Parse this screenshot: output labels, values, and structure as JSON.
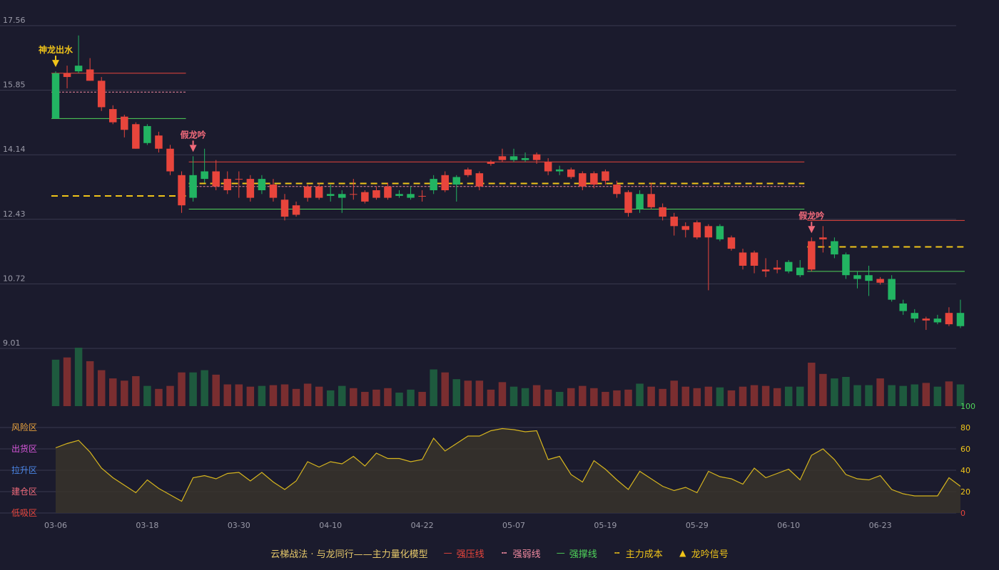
{
  "colors": {
    "bg": "#1b1b2d",
    "grid": "#3a3a4e",
    "up": "#e8453c",
    "down": "#22b462",
    "vol_up": "#7a2e30",
    "vol_down": "#1e5a3e",
    "pressure": "#e8453c",
    "weak": "#f08aa0",
    "support": "#4fd45a",
    "cost": "#f0c419",
    "osc_line": "#d6b51e",
    "osc_fill": "#3a352a",
    "axis_text": "#9a9aa8"
  },
  "chart_data": {
    "type": "candlestick",
    "y_ticks": [
      "17.56",
      "15.85",
      "14.14",
      "12.43",
      "10.72",
      "9.01"
    ],
    "ylim": [
      9.01,
      17.56
    ],
    "x_tick_labels": [
      {
        "i": 0,
        "label": "03-06"
      },
      {
        "i": 8,
        "label": "03-18"
      },
      {
        "i": 16,
        "label": "03-30"
      },
      {
        "i": 24,
        "label": "04-10"
      },
      {
        "i": 32,
        "label": "04-22"
      },
      {
        "i": 40,
        "label": "05-07"
      },
      {
        "i": 48,
        "label": "05-19"
      },
      {
        "i": 56,
        "label": "05-29"
      },
      {
        "i": 64,
        "label": "06-10"
      },
      {
        "i": 72,
        "label": "06-23"
      }
    ],
    "candles": [
      [
        16.3,
        15.1,
        16.35,
        15.1
      ],
      [
        16.2,
        16.3,
        16.5,
        15.9
      ],
      [
        16.5,
        16.35,
        17.3,
        16.3
      ],
      [
        16.1,
        16.4,
        16.7,
        16.1
      ],
      [
        15.4,
        16.1,
        16.2,
        15.3
      ],
      [
        15.0,
        15.35,
        15.45,
        14.95
      ],
      [
        14.8,
        15.15,
        15.2,
        14.6
      ],
      [
        14.3,
        14.95,
        15.0,
        14.3
      ],
      [
        14.9,
        14.45,
        14.95,
        14.4
      ],
      [
        14.3,
        14.65,
        14.75,
        14.2
      ],
      [
        13.7,
        14.3,
        14.4,
        13.6
      ],
      [
        12.8,
        13.6,
        13.7,
        12.6
      ],
      [
        13.6,
        13.0,
        14.1,
        12.9
      ],
      [
        13.7,
        13.5,
        14.3,
        13.4
      ],
      [
        13.3,
        13.7,
        14.0,
        13.2
      ],
      [
        13.2,
        13.5,
        13.7,
        13.1
      ],
      [
        13.5,
        13.5,
        13.7,
        13.0
      ],
      [
        13.0,
        13.5,
        13.6,
        12.9
      ],
      [
        13.5,
        13.2,
        13.6,
        13.1
      ],
      [
        13.0,
        13.35,
        13.5,
        12.9
      ],
      [
        12.5,
        12.95,
        13.1,
        12.4
      ],
      [
        12.55,
        12.8,
        12.9,
        12.5
      ],
      [
        13.0,
        13.3,
        13.35,
        12.9
      ],
      [
        13.0,
        13.3,
        13.4,
        12.95
      ],
      [
        13.1,
        13.05,
        13.35,
        12.9
      ],
      [
        13.1,
        13.0,
        13.2,
        12.6
      ],
      [
        13.1,
        13.1,
        13.5,
        12.95
      ],
      [
        12.9,
        13.15,
        13.2,
        12.85
      ],
      [
        13.0,
        13.2,
        13.3,
        12.95
      ],
      [
        13.0,
        13.3,
        13.4,
        12.95
      ],
      [
        13.1,
        13.05,
        13.2,
        13.0
      ],
      [
        13.1,
        13.0,
        13.3,
        12.95
      ],
      [
        13.05,
        13.05,
        13.2,
        12.9
      ],
      [
        13.5,
        13.2,
        13.6,
        13.1
      ],
      [
        13.2,
        13.6,
        13.7,
        13.15
      ],
      [
        13.55,
        13.35,
        13.6,
        12.9
      ],
      [
        13.6,
        13.75,
        13.8,
        13.55
      ],
      [
        13.3,
        13.65,
        13.7,
        13.2
      ],
      [
        13.9,
        13.95,
        14.0,
        13.85
      ],
      [
        14.0,
        14.1,
        14.3,
        13.95
      ],
      [
        14.1,
        14.0,
        14.3,
        13.95
      ],
      [
        14.05,
        14.0,
        14.2,
        13.95
      ],
      [
        14.0,
        14.15,
        14.2,
        13.9
      ],
      [
        13.7,
        13.95,
        14.05,
        13.6
      ],
      [
        13.75,
        13.7,
        13.85,
        13.6
      ],
      [
        13.55,
        13.75,
        13.8,
        13.5
      ],
      [
        13.3,
        13.65,
        13.7,
        13.2
      ],
      [
        13.35,
        13.65,
        13.7,
        13.25
      ],
      [
        13.45,
        13.7,
        13.75,
        13.35
      ],
      [
        13.1,
        13.35,
        13.45,
        13.0
      ],
      [
        12.6,
        13.15,
        13.2,
        12.5
      ],
      [
        13.1,
        12.7,
        13.2,
        12.6
      ],
      [
        12.75,
        13.1,
        13.4,
        12.7
      ],
      [
        12.5,
        12.75,
        12.85,
        12.4
      ],
      [
        12.25,
        12.5,
        12.6,
        12.0
      ],
      [
        12.15,
        12.25,
        12.35,
        11.95
      ],
      [
        11.95,
        12.35,
        12.4,
        11.9
      ],
      [
        11.95,
        12.25,
        12.3,
        10.55
      ],
      [
        12.25,
        11.9,
        12.3,
        11.85
      ],
      [
        11.65,
        11.95,
        12.0,
        11.6
      ],
      [
        11.2,
        11.55,
        11.65,
        11.1
      ],
      [
        11.2,
        11.55,
        11.6,
        11.0
      ],
      [
        11.05,
        11.1,
        11.4,
        10.9
      ],
      [
        11.1,
        11.15,
        11.35,
        11.0
      ],
      [
        11.3,
        11.05,
        11.35,
        11.0
      ],
      [
        11.15,
        10.95,
        11.35,
        10.9
      ],
      [
        11.1,
        11.85,
        11.95,
        11.05
      ],
      [
        11.9,
        11.95,
        12.25,
        11.55
      ],
      [
        11.85,
        11.5,
        11.95,
        11.4
      ],
      [
        11.5,
        10.95,
        11.55,
        10.85
      ],
      [
        10.95,
        10.85,
        11.05,
        10.6
      ],
      [
        10.95,
        10.8,
        11.2,
        10.4
      ],
      [
        10.75,
        10.85,
        10.9,
        10.7
      ],
      [
        10.85,
        10.3,
        10.95,
        10.25
      ],
      [
        10.2,
        10.0,
        10.3,
        9.9
      ],
      [
        9.95,
        9.8,
        10.05,
        9.7
      ],
      [
        9.75,
        9.8,
        9.85,
        9.5
      ],
      [
        9.8,
        9.7,
        9.9,
        9.65
      ],
      [
        9.65,
        9.95,
        10.1,
        9.6
      ],
      [
        9.95,
        9.6,
        10.3,
        9.55
      ]
    ],
    "volumes": [
      62,
      65,
      78,
      60,
      48,
      37,
      34,
      40,
      27,
      23,
      27,
      45,
      45,
      48,
      42,
      29,
      29,
      26,
      27,
      28,
      29,
      23,
      30,
      26,
      21,
      27,
      24,
      19,
      22,
      24,
      18,
      22,
      19,
      49,
      45,
      36,
      34,
      34,
      22,
      32,
      26,
      24,
      28,
      22,
      19,
      24,
      27,
      24,
      19,
      21,
      22,
      30,
      26,
      23,
      34,
      26,
      24,
      26,
      25,
      21,
      26,
      28,
      27,
      24,
      26,
      26,
      58,
      43,
      37,
      39,
      28,
      28,
      37,
      28,
      27,
      29,
      31,
      26,
      33,
      29
    ],
    "oscillator": {
      "values": [
        61,
        65,
        68,
        57,
        42,
        33,
        26,
        19,
        31,
        23,
        17,
        11,
        33,
        35,
        32,
        37,
        38,
        30,
        38,
        29,
        22,
        30,
        48,
        43,
        48,
        46,
        53,
        44,
        56,
        51,
        51,
        48,
        50,
        70,
        58,
        65,
        72,
        72,
        77,
        79,
        78,
        76,
        77,
        50,
        53,
        36,
        29,
        49,
        41,
        31,
        22,
        39,
        32,
        25,
        21,
        24,
        19,
        39,
        34,
        32,
        27,
        42,
        33,
        37,
        41,
        31,
        54,
        60,
        50,
        36,
        32,
        31,
        35,
        22,
        18,
        16,
        16,
        16,
        33,
        25
      ],
      "ylim": [
        0,
        100
      ],
      "right_ticks": [
        "100",
        "80",
        "60",
        "40",
        "20",
        "0"
      ],
      "zones": [
        {
          "label": "风险区",
          "color": "#e8a23c"
        },
        {
          "label": "出货区",
          "color": "#d455d8"
        },
        {
          "label": "拉升区",
          "color": "#4a86e8"
        },
        {
          "label": "建仓区",
          "color": "#f06a7a"
        },
        {
          "label": "低吸区",
          "color": "#e8453c"
        }
      ]
    },
    "levels": [
      {
        "type": "pressure",
        "from": 0,
        "to": 11,
        "value": 16.3
      },
      {
        "type": "weak",
        "from": 0,
        "to": 11,
        "value": 15.8
      },
      {
        "type": "support",
        "from": 0,
        "to": 11,
        "value": 15.1
      },
      {
        "type": "cost",
        "from": 0,
        "to": 11,
        "value": 13.05
      },
      {
        "type": "pressure",
        "from": 12,
        "to": 65,
        "value": 13.95
      },
      {
        "type": "weak",
        "from": 12,
        "to": 65,
        "value": 13.3
      },
      {
        "type": "cost",
        "from": 12,
        "to": 65,
        "value": 13.38
      },
      {
        "type": "support",
        "from": 12,
        "to": 65,
        "value": 12.7
      },
      {
        "type": "pressure",
        "from": 66,
        "to": 79,
        "value": 12.4
      },
      {
        "type": "cost",
        "from": 66,
        "to": 79,
        "value": 11.7
      },
      {
        "type": "support",
        "from": 66,
        "to": 79,
        "value": 11.05
      }
    ],
    "signals": [
      {
        "i": 0,
        "label": "神龙出水",
        "color": "#f0c419"
      },
      {
        "i": 12,
        "label": "假龙吟",
        "color": "#f06a7a"
      },
      {
        "i": 66,
        "label": "假龙吟",
        "color": "#f06a7a"
      }
    ]
  },
  "legend": [
    {
      "text": "云梯战法 · 与龙同行——主力量化模型",
      "symbol": "",
      "color": "#e6c86a"
    },
    {
      "text": "强压线",
      "symbol": "—",
      "color": "#e8453c"
    },
    {
      "text": "强弱线",
      "symbol": "┅",
      "color": "#f08aa0"
    },
    {
      "text": "强撑线",
      "symbol": "—",
      "color": "#4fd45a"
    },
    {
      "text": "主力成本",
      "symbol": "┅",
      "color": "#f0c419"
    },
    {
      "text": "龙吟信号",
      "symbol": "▲",
      "color": "#f0c419"
    }
  ]
}
